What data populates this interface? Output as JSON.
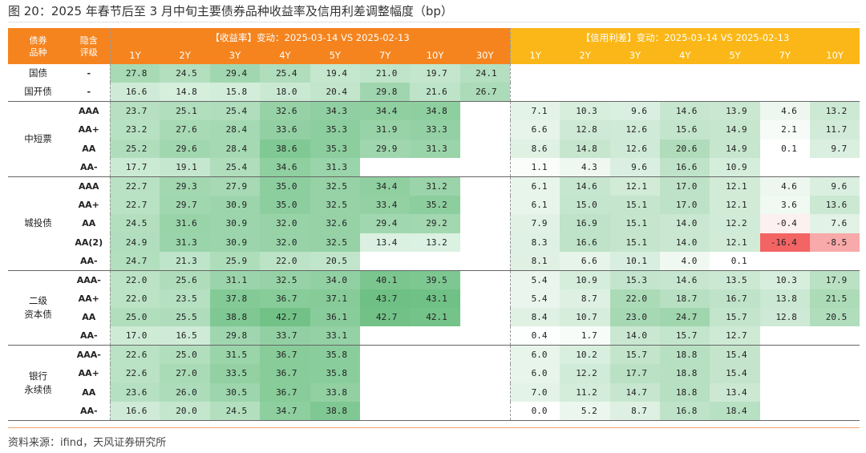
{
  "title": "图 20：2025 年春节后至 3 月中旬主要债券品种收益率及信用利差调整幅度（bp）",
  "header": {
    "bond_type": "债券\n品种",
    "rating": "隐含\n评级",
    "yield_title": "【收益率】变动：2025-03-14 VS 2025-02-13",
    "spread_title": "【信用利差】变动：2025-03-14 VS 2025-02-13",
    "yield_tenors": [
      "1Y",
      "2Y",
      "3Y",
      "4Y",
      "5Y",
      "7Y",
      "10Y",
      "30Y"
    ],
    "spread_tenors": [
      "1Y",
      "2Y",
      "3Y",
      "4Y",
      "5Y",
      "7Y",
      "10Y"
    ]
  },
  "colors": {
    "yield_header": "#f5841f",
    "spread_header": "#fbb717",
    "positive": "#5cb874",
    "negative": "#f36464"
  },
  "groups": [
    {
      "name": "国债",
      "rows": [
        {
          "rating": "-",
          "yield": [
            "27.8",
            "24.5",
            "29.4",
            "25.4",
            "19.4",
            "21.0",
            "19.7",
            "24.1"
          ],
          "spread": [
            null,
            null,
            null,
            null,
            null,
            null,
            null
          ]
        }
      ]
    },
    {
      "name": "国开债",
      "rows": [
        {
          "rating": "-",
          "yield": [
            "16.6",
            "14.8",
            "15.8",
            "18.0",
            "20.4",
            "29.8",
            "21.6",
            "26.7"
          ],
          "spread": [
            null,
            null,
            null,
            null,
            null,
            null,
            null
          ]
        }
      ]
    },
    {
      "name": "中短票",
      "rows": [
        {
          "rating": "AAA",
          "yield": [
            "23.7",
            "25.1",
            "25.4",
            "32.6",
            "34.3",
            "34.4",
            "34.8",
            null
          ],
          "spread": [
            "7.1",
            "10.3",
            "9.6",
            "14.6",
            "13.9",
            "4.6",
            "13.2"
          ]
        },
        {
          "rating": "AA+",
          "yield": [
            "23.2",
            "27.6",
            "28.4",
            "33.6",
            "35.3",
            "31.9",
            "33.3",
            null
          ],
          "spread": [
            "6.6",
            "12.8",
            "12.6",
            "15.6",
            "14.9",
            "2.1",
            "11.7"
          ]
        },
        {
          "rating": "AA",
          "yield": [
            "25.2",
            "29.6",
            "28.4",
            "38.6",
            "35.3",
            "29.9",
            "31.3",
            null
          ],
          "spread": [
            "8.6",
            "14.8",
            "12.6",
            "20.6",
            "14.9",
            "0.1",
            "9.7"
          ]
        },
        {
          "rating": "AA-",
          "yield": [
            "17.7",
            "19.1",
            "25.4",
            "34.6",
            "31.3",
            null,
            null,
            null
          ],
          "spread": [
            "1.1",
            "4.3",
            "9.6",
            "16.6",
            "10.9",
            null,
            null
          ]
        }
      ]
    },
    {
      "name": "城投债",
      "rows": [
        {
          "rating": "AAA",
          "yield": [
            "22.7",
            "29.3",
            "27.9",
            "35.0",
            "32.5",
            "34.4",
            "31.2",
            null
          ],
          "spread": [
            "6.1",
            "14.6",
            "12.1",
            "17.0",
            "12.1",
            "4.6",
            "9.6"
          ]
        },
        {
          "rating": "AA+",
          "yield": [
            "22.7",
            "29.7",
            "30.9",
            "35.0",
            "32.5",
            "33.4",
            "35.2",
            null
          ],
          "spread": [
            "6.1",
            "15.0",
            "15.1",
            "17.0",
            "12.1",
            "3.6",
            "13.6"
          ]
        },
        {
          "rating": "AA",
          "yield": [
            "24.5",
            "31.6",
            "30.9",
            "32.0",
            "32.6",
            "29.4",
            "29.2",
            null
          ],
          "spread": [
            "7.9",
            "16.9",
            "15.1",
            "14.0",
            "12.2",
            "-0.4",
            "7.6"
          ]
        },
        {
          "rating": "AA(2)",
          "yield": [
            "24.9",
            "31.3",
            "30.9",
            "32.0",
            "32.5",
            "13.4",
            "13.2",
            null
          ],
          "spread": [
            "8.3",
            "16.6",
            "15.1",
            "14.0",
            "12.1",
            "-16.4",
            "-8.5"
          ]
        },
        {
          "rating": "AA-",
          "yield": [
            "24.7",
            "21.3",
            "25.9",
            "22.0",
            "20.5",
            null,
            null,
            null
          ],
          "spread": [
            "8.1",
            "6.6",
            "10.1",
            "4.0",
            "0.1",
            null,
            null
          ]
        }
      ]
    },
    {
      "name": "二级\n资本债",
      "rows": [
        {
          "rating": "AAA-",
          "yield": [
            "22.0",
            "25.6",
            "31.1",
            "32.5",
            "34.0",
            "40.1",
            "39.5",
            null
          ],
          "spread": [
            "5.4",
            "10.9",
            "15.3",
            "14.6",
            "13.5",
            "10.3",
            "17.9"
          ]
        },
        {
          "rating": "AA+",
          "yield": [
            "22.0",
            "23.5",
            "37.8",
            "36.7",
            "37.1",
            "43.7",
            "43.1",
            null
          ],
          "spread": [
            "5.4",
            "8.7",
            "22.0",
            "18.7",
            "16.7",
            "13.8",
            "21.5"
          ]
        },
        {
          "rating": "AA",
          "yield": [
            "25.0",
            "25.5",
            "38.8",
            "42.7",
            "36.1",
            "42.7",
            "42.1",
            null
          ],
          "spread": [
            "8.4",
            "10.7",
            "23.0",
            "24.7",
            "15.7",
            "12.8",
            "20.5"
          ]
        },
        {
          "rating": "AA-",
          "yield": [
            "17.0",
            "16.5",
            "29.8",
            "33.7",
            "33.1",
            null,
            null,
            null
          ],
          "spread": [
            "0.4",
            "1.7",
            "14.0",
            "15.7",
            "12.7",
            null,
            null
          ]
        }
      ]
    },
    {
      "name": "银行\n永续债",
      "rows": [
        {
          "rating": "AAA-",
          "yield": [
            "22.6",
            "25.0",
            "31.5",
            "36.7",
            "35.8",
            null,
            null,
            null
          ],
          "spread": [
            "6.0",
            "10.2",
            "15.7",
            "18.8",
            "15.4",
            null,
            null
          ]
        },
        {
          "rating": "AA+",
          "yield": [
            "22.6",
            "27.0",
            "33.5",
            "36.7",
            "35.8",
            null,
            null,
            null
          ],
          "spread": [
            "6.0",
            "12.2",
            "17.7",
            "18.8",
            "15.4",
            null,
            null
          ]
        },
        {
          "rating": "AA",
          "yield": [
            "23.6",
            "26.0",
            "30.5",
            "36.7",
            "33.8",
            null,
            null,
            null
          ],
          "spread": [
            "7.0",
            "11.2",
            "14.7",
            "18.8",
            "13.4",
            null,
            null
          ]
        },
        {
          "rating": "AA-",
          "yield": [
            "16.6",
            "20.0",
            "24.5",
            "34.7",
            "38.8",
            null,
            null,
            null
          ],
          "spread": [
            "0.0",
            "5.2",
            "8.7",
            "16.8",
            "18.4",
            null,
            null
          ]
        }
      ]
    }
  ],
  "source": "资料来源：ifind，天风证券研究所"
}
